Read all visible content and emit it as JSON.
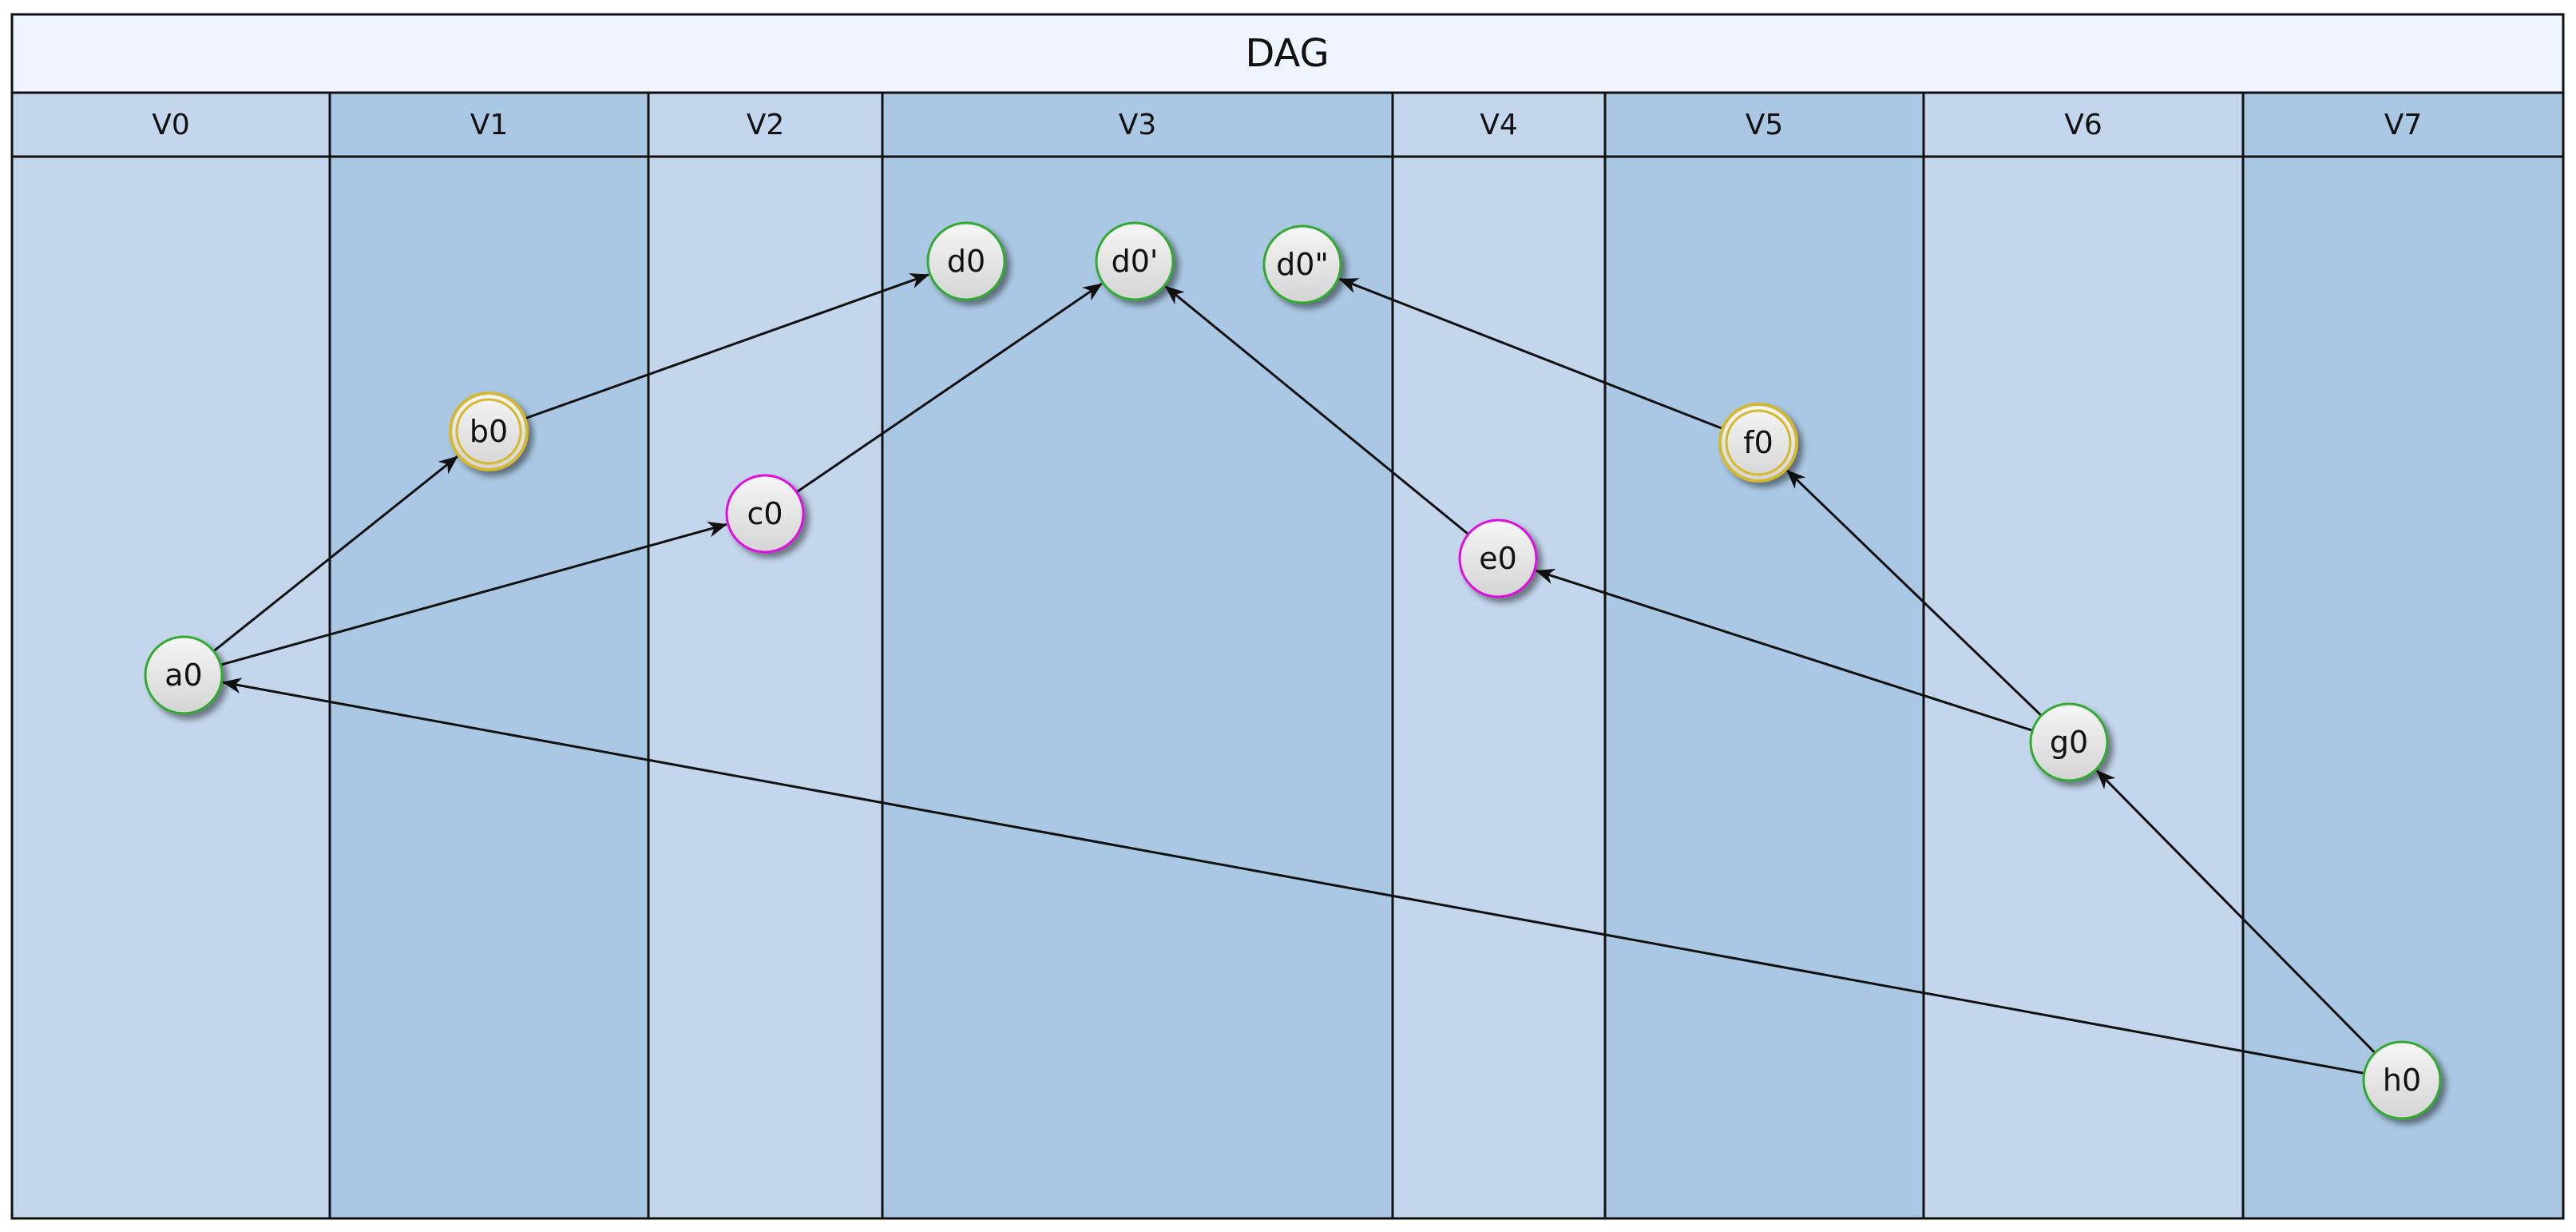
{
  "title": "DAG",
  "colors": {
    "title_bg": "#eef4fd",
    "lane_light": "#c3d6ec",
    "lane_dark": "#aac8e3",
    "border": "#111111",
    "edge": "#111111",
    "node_fill_top": "#f6f6f6",
    "node_fill_bottom": "#d4d4d4",
    "green": "#33aa33",
    "magenta": "#e010e0",
    "gold": "#d4b830"
  },
  "lanes": [
    {
      "id": "V0",
      "label": "V0"
    },
    {
      "id": "V1",
      "label": "V1"
    },
    {
      "id": "V2",
      "label": "V2"
    },
    {
      "id": "V3",
      "label": "V3"
    },
    {
      "id": "V4",
      "label": "V4"
    },
    {
      "id": "V5",
      "label": "V5"
    },
    {
      "id": "V6",
      "label": "V6"
    },
    {
      "id": "V7",
      "label": "V7"
    }
  ],
  "nodes": [
    {
      "id": "a0",
      "label": "a0",
      "lane": "V0",
      "style": "green"
    },
    {
      "id": "b0",
      "label": "b0",
      "lane": "V1",
      "style": "gold-double"
    },
    {
      "id": "c0",
      "label": "c0",
      "lane": "V2",
      "style": "magenta"
    },
    {
      "id": "d0",
      "label": "d0",
      "lane": "V3",
      "style": "green"
    },
    {
      "id": "d0p",
      "label": "d0'",
      "lane": "V3",
      "style": "green"
    },
    {
      "id": "d0pp",
      "label": "d0\"",
      "lane": "V3",
      "style": "green"
    },
    {
      "id": "e0",
      "label": "e0",
      "lane": "V4",
      "style": "magenta"
    },
    {
      "id": "f0",
      "label": "f0",
      "lane": "V5",
      "style": "gold-double"
    },
    {
      "id": "g0",
      "label": "g0",
      "lane": "V6",
      "style": "green"
    },
    {
      "id": "h0",
      "label": "h0",
      "lane": "V7",
      "style": "green"
    }
  ],
  "edges": [
    {
      "from": "a0",
      "to": "b0"
    },
    {
      "from": "a0",
      "to": "c0"
    },
    {
      "from": "b0",
      "to": "d0"
    },
    {
      "from": "c0",
      "to": "d0p"
    },
    {
      "from": "e0",
      "to": "d0p"
    },
    {
      "from": "f0",
      "to": "d0pp"
    },
    {
      "from": "g0",
      "to": "e0"
    },
    {
      "from": "g0",
      "to": "f0"
    },
    {
      "from": "h0",
      "to": "g0"
    },
    {
      "from": "h0",
      "to": "a0"
    }
  ]
}
